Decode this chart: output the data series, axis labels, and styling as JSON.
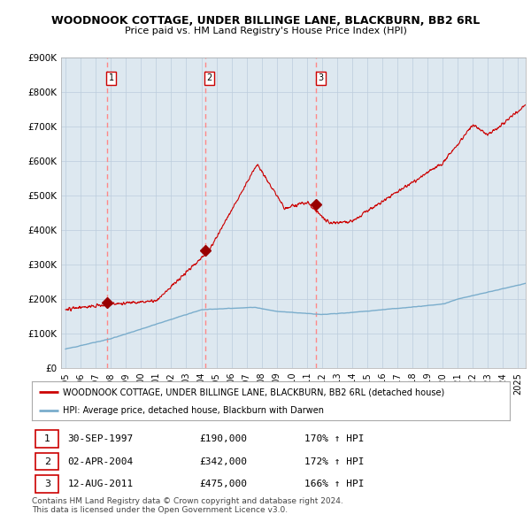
{
  "title": "WOODNOOK COTTAGE, UNDER BILLINGE LANE, BLACKBURN, BB2 6RL",
  "subtitle": "Price paid vs. HM Land Registry's House Price Index (HPI)",
  "ylim": [
    0,
    900000
  ],
  "yticks": [
    0,
    100000,
    200000,
    300000,
    400000,
    500000,
    600000,
    700000,
    800000,
    900000
  ],
  "ytick_labels": [
    "£0",
    "£100K",
    "£200K",
    "£300K",
    "£400K",
    "£500K",
    "£600K",
    "£700K",
    "£800K",
    "£900K"
  ],
  "sale_dates": [
    1997.75,
    2004.25,
    2011.62
  ],
  "sale_prices": [
    190000,
    342000,
    475000
  ],
  "sale_labels": [
    "1",
    "2",
    "3"
  ],
  "sale_date_strs": [
    "30-SEP-1997",
    "02-APR-2004",
    "12-AUG-2011"
  ],
  "sale_price_strs": [
    "£190,000",
    "£342,000",
    "£475,000"
  ],
  "sale_hpi_strs": [
    "170% ↑ HPI",
    "172% ↑ HPI",
    "166% ↑ HPI"
  ],
  "red_line_color": "#cc0000",
  "blue_line_color": "#7aadcc",
  "sale_marker_color": "#990000",
  "dashed_line_color": "#ff8888",
  "grid_color": "#bbccdd",
  "bg_color": "#dde8f0",
  "legend_label_red": "WOODNOOK COTTAGE, UNDER BILLINGE LANE, BLACKBURN, BB2 6RL (detached house)",
  "legend_label_blue": "HPI: Average price, detached house, Blackburn with Darwen",
  "footer1": "Contains HM Land Registry data © Crown copyright and database right 2024.",
  "footer2": "This data is licensed under the Open Government Licence v3.0."
}
